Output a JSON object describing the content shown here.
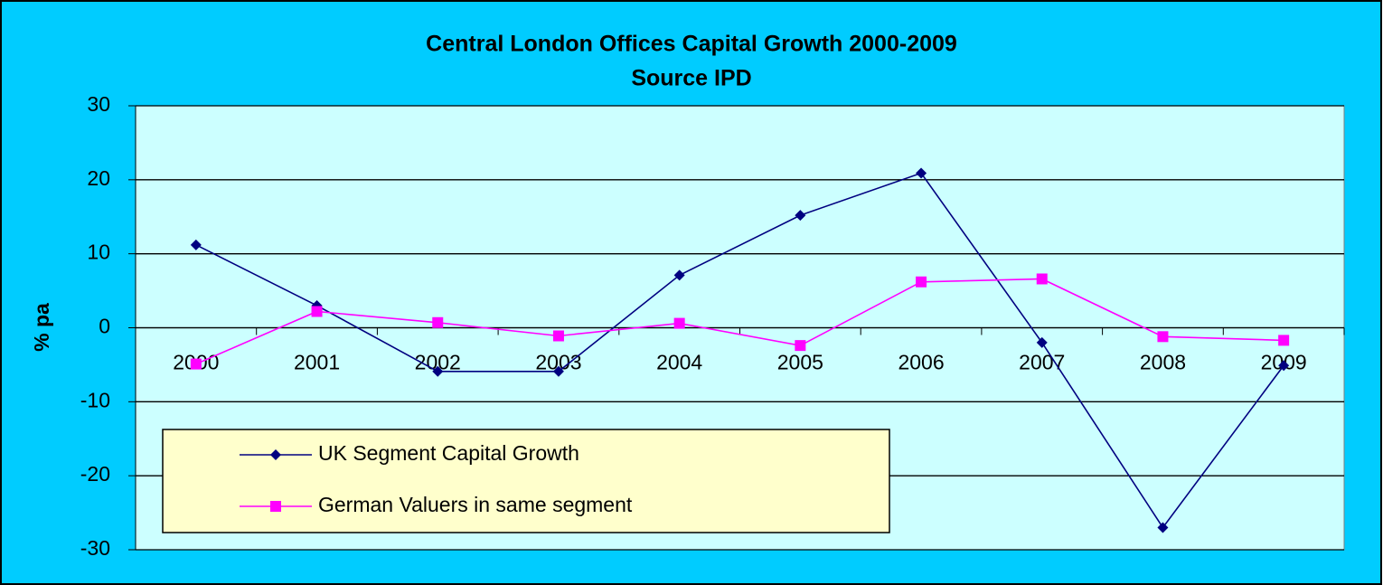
{
  "chart_data": {
    "type": "line",
    "title": "Central London Offices Capital Growth 2000-2009",
    "subtitle": "Source IPD",
    "y_label": "% pa",
    "categories": [
      "2000",
      "2001",
      "2002",
      "2003",
      "2004",
      "2005",
      "2006",
      "2007",
      "2008",
      "2009"
    ],
    "series": [
      {
        "name": "UK Segment Capital Growth",
        "color": "#000080",
        "marker": "diamond",
        "values": [
          11.2,
          3.0,
          -5.9,
          -5.9,
          7.1,
          15.2,
          20.9,
          -2.0,
          -27.0,
          -5.1
        ]
      },
      {
        "name": "German Valuers in same segment",
        "color": "#ff00ff",
        "marker": "square",
        "values": [
          -4.9,
          2.2,
          0.7,
          -1.1,
          0.6,
          -2.4,
          6.2,
          6.6,
          -1.2,
          -1.7
        ]
      }
    ],
    "ylim": [
      -30,
      30
    ],
    "yticks": [
      -30,
      -20,
      -10,
      0,
      10,
      20,
      30
    ],
    "grid": true
  }
}
